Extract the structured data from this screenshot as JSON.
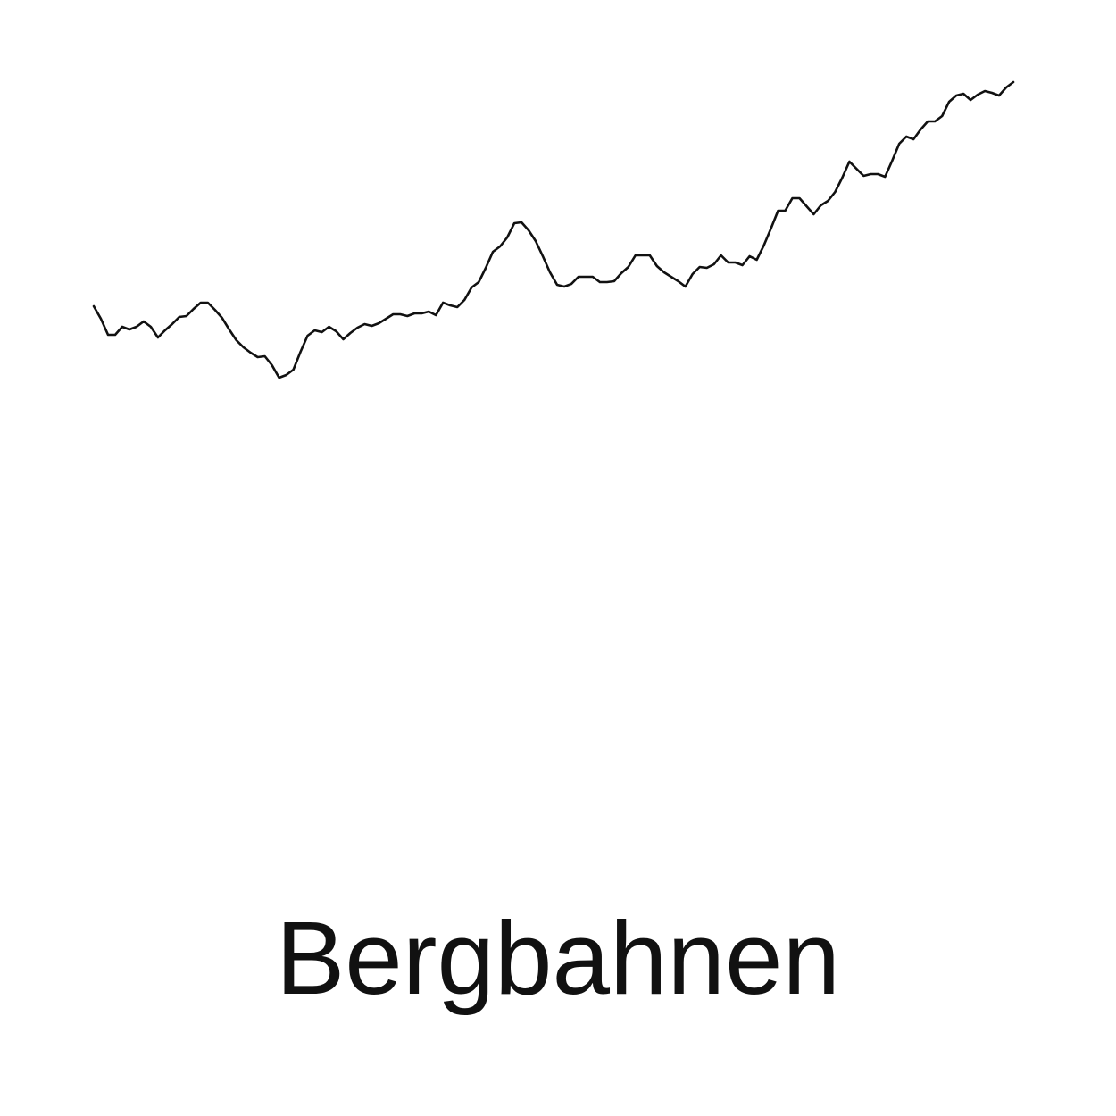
{
  "chart_data": {
    "type": "line",
    "title": "Bergbahnen",
    "color": "#111111",
    "values": [
      80,
      66,
      48,
      48,
      57,
      54,
      57,
      63,
      57,
      45,
      53,
      60,
      68,
      69,
      77,
      84,
      84,
      76,
      67,
      54,
      42,
      34,
      28,
      23,
      24,
      14,
      0,
      3,
      9,
      29,
      47,
      53,
      51,
      57,
      52,
      43,
      50,
      56,
      60,
      58,
      61,
      66,
      71,
      71,
      69,
      72,
      72,
      74,
      70,
      84,
      81,
      79,
      87,
      101,
      107,
      123,
      141,
      147,
      157,
      173,
      174,
      165,
      153,
      136,
      118,
      104,
      102,
      105,
      113,
      113,
      113,
      107,
      107,
      108,
      117,
      124,
      137,
      137,
      137,
      125,
      118,
      113,
      108,
      102,
      116,
      124,
      123,
      127,
      137,
      129,
      129,
      126,
      136,
      132,
      148,
      167,
      187,
      187,
      201,
      201,
      192,
      183,
      193,
      198,
      208,
      224,
      242,
      234,
      226,
      228,
      228,
      225,
      243,
      262,
      270,
      267,
      278,
      287,
      287,
      293,
      309,
      316,
      318,
      311,
      317,
      321,
      319,
      316,
      325,
      331
    ]
  }
}
